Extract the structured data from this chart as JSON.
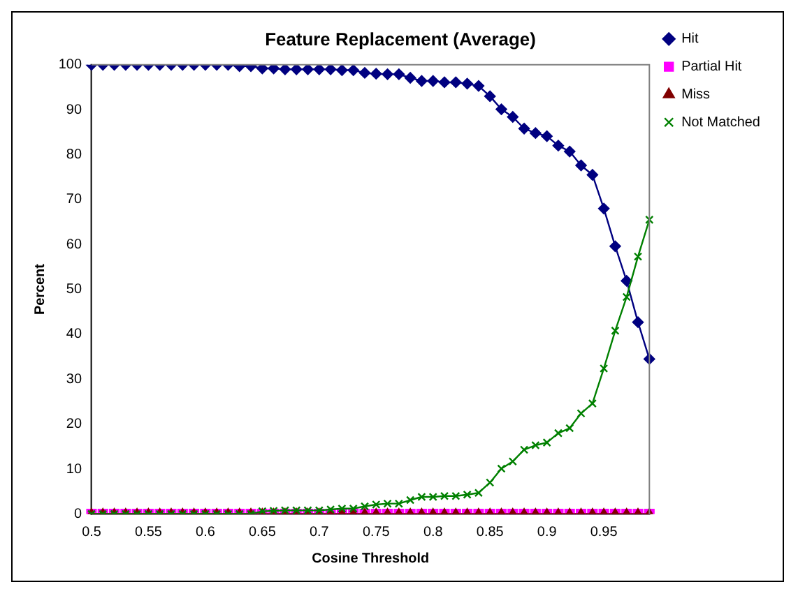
{
  "chart_data": {
    "type": "line",
    "title": "Feature Replacement (Average)",
    "xlabel": "Cosine Threshold",
    "ylabel": "Percent",
    "categories": [
      "0.5",
      null,
      null,
      null,
      null,
      "0.55",
      null,
      null,
      null,
      null,
      "0.6",
      null,
      null,
      null,
      null,
      "0.65",
      null,
      null,
      null,
      null,
      "0.7",
      null,
      null,
      null,
      null,
      "0.75",
      null,
      null,
      null,
      null,
      "0.8",
      null,
      null,
      null,
      null,
      "0.85",
      null,
      null,
      null,
      null,
      "0.9",
      null,
      null,
      null,
      null,
      "0.95",
      null,
      null,
      null,
      null
    ],
    "series": [
      {
        "name": "Hit",
        "color": "#000080",
        "marker": "diamond",
        "values": [
          100,
          100,
          100,
          100,
          100,
          100,
          100,
          100,
          100,
          100,
          100,
          100,
          100,
          99.7,
          99.7,
          99.2,
          99.2,
          99.0,
          99.0,
          99.0,
          99.0,
          99.0,
          98.8,
          98.8,
          98.2,
          98.0,
          97.9,
          97.9,
          97.1,
          96.4,
          96.4,
          96.1,
          96.1,
          95.8,
          95.3,
          93.0,
          90.1,
          88.4,
          85.8,
          84.8,
          84.1,
          82.0,
          80.7,
          77.6,
          75.5,
          68.0,
          59.6,
          51.9,
          42.7,
          34.5
        ]
      },
      {
        "name": "Partial Hit",
        "color": "#ff00ff",
        "marker": "square",
        "values": [
          0,
          0,
          0,
          0,
          0,
          0,
          0,
          0,
          0,
          0,
          0,
          0,
          0,
          0,
          0,
          0,
          0,
          0,
          0,
          0,
          0,
          0,
          0,
          0,
          0,
          0,
          0,
          0,
          0,
          0,
          0,
          0,
          0,
          0,
          0,
          0,
          0,
          0,
          0,
          0,
          0,
          0,
          0,
          0,
          0,
          0,
          0,
          0,
          0,
          0
        ]
      },
      {
        "name": "Miss",
        "color": "#800000",
        "marker": "triangle",
        "values": [
          0,
          0,
          0,
          0,
          0,
          0,
          0,
          0,
          0,
          0,
          0,
          0,
          0,
          0,
          0,
          0,
          0,
          0,
          0,
          0,
          0,
          0,
          0,
          0,
          0,
          0,
          0,
          0,
          0,
          0,
          0,
          0,
          0,
          0,
          0,
          0,
          0,
          0,
          0,
          0,
          0,
          0,
          0,
          0,
          0,
          0,
          0,
          0,
          0,
          0
        ]
      },
      {
        "name": "Not Matched",
        "color": "#008000",
        "marker": "cross",
        "values": [
          0,
          0,
          0,
          0,
          0,
          0,
          0,
          0,
          0,
          0,
          0,
          0,
          0,
          0,
          0,
          0.6,
          0.7,
          0.8,
          0.8,
          0.8,
          0.8,
          1.0,
          1.2,
          1.2,
          1.7,
          2.1,
          2.3,
          2.3,
          3.1,
          3.8,
          3.8,
          4.0,
          4.0,
          4.3,
          4.7,
          7.0,
          10.1,
          11.7,
          14.3,
          15.3,
          15.9,
          18.0,
          19.1,
          22.4,
          24.6,
          32.4,
          40.8,
          48.3,
          57.3,
          65.5
        ]
      }
    ],
    "ylim": [
      0,
      100
    ],
    "yticks": [
      0,
      10,
      20,
      30,
      40,
      50,
      60,
      70,
      80,
      90,
      100
    ],
    "grid": false,
    "legend": "top right",
    "line_style": "solid"
  }
}
